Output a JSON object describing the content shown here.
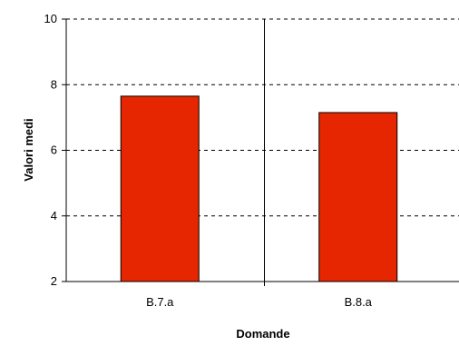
{
  "chart_data": {
    "type": "bar",
    "title": "",
    "xlabel": "Domande",
    "ylabel": "Valori medi",
    "categories": [
      "B.7.a",
      "B.8.a"
    ],
    "series": [
      {
        "values": [
          7.65,
          7.15
        ]
      }
    ],
    "ylim": [
      2,
      10
    ],
    "yticks": [
      2,
      4,
      6,
      8,
      10
    ],
    "grid": "horizontal-dashed",
    "legend": "none",
    "colors": {
      "bar": "#e62600",
      "bar_outline": "#000000",
      "grid": "#000000",
      "axis": "#000000"
    }
  }
}
